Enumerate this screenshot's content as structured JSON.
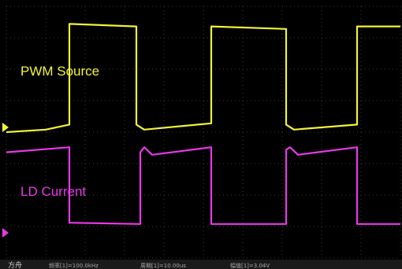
{
  "chart_data": {
    "type": "line",
    "title": "",
    "xlabel": "",
    "ylabel": "",
    "grid": true,
    "legend_placement": "inline labels",
    "xlim": [
      0,
      10
    ],
    "ylim": [
      0,
      10
    ],
    "series": [
      {
        "name": "PWM Source",
        "color": "#f2f23a",
        "points": [
          [
            0.0,
            5.0
          ],
          [
            1.0,
            5.1
          ],
          [
            1.6,
            5.3
          ],
          [
            1.6,
            9.3
          ],
          [
            3.3,
            9.2
          ],
          [
            3.3,
            5.3
          ],
          [
            3.5,
            5.1
          ],
          [
            5.2,
            5.35
          ],
          [
            5.2,
            9.2
          ],
          [
            7.1,
            9.1
          ],
          [
            7.1,
            5.3
          ],
          [
            7.3,
            5.1
          ],
          [
            8.9,
            5.3
          ],
          [
            8.9,
            9.2
          ],
          [
            10.0,
            9.2
          ]
        ]
      },
      {
        "name": "LD Current",
        "color": "#e838e8",
        "points": [
          [
            0.0,
            4.2
          ],
          [
            1.6,
            4.4
          ],
          [
            1.6,
            1.4
          ],
          [
            3.4,
            1.35
          ],
          [
            3.4,
            4.2
          ],
          [
            3.5,
            4.4
          ],
          [
            3.7,
            4.1
          ],
          [
            5.2,
            4.4
          ],
          [
            5.2,
            1.35
          ],
          [
            7.1,
            1.35
          ],
          [
            7.1,
            4.3
          ],
          [
            7.2,
            4.4
          ],
          [
            7.4,
            4.1
          ],
          [
            8.9,
            4.4
          ],
          [
            8.9,
            1.35
          ],
          [
            10.0,
            1.35
          ]
        ]
      }
    ],
    "annotations": [
      {
        "text": "PWM Source",
        "color": "#f2f23a"
      },
      {
        "text": "LD Current",
        "color": "#e838e8"
      }
    ],
    "status_bar": [
      "方舟",
      "频率[1]=100.0kHz",
      "周期[1]=10.00us",
      "幅值[1]=3.04V"
    ]
  }
}
